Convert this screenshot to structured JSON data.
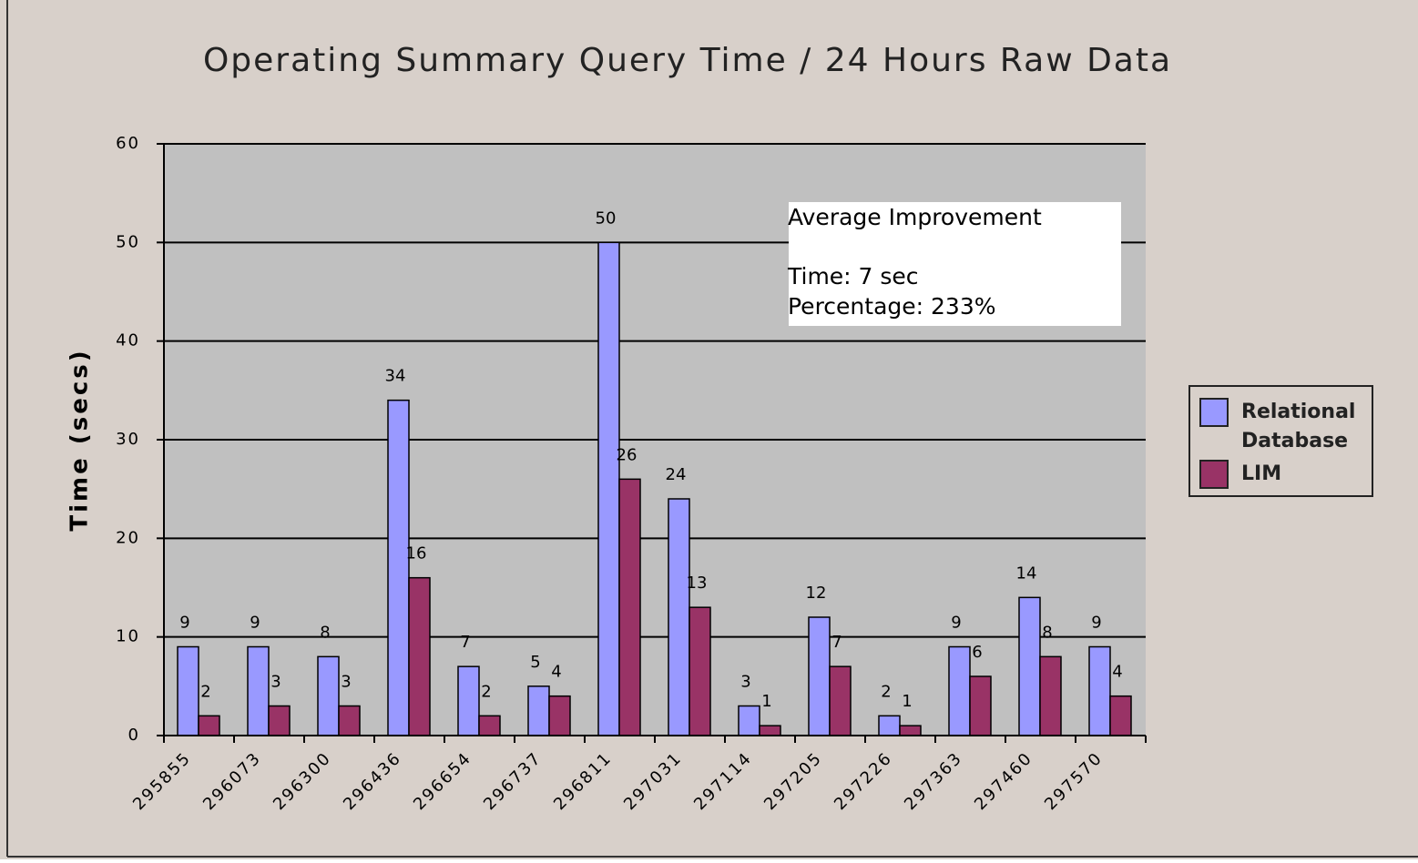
{
  "chart_data": {
    "type": "bar",
    "title": "Operating Summary Query Time / 24 Hours Raw Data",
    "y_label": "Time (secs)",
    "annotation": [
      "Average Improvement",
      "Time: 7 sec",
      "Percentage: 233%"
    ],
    "categories": [
      "295855",
      "296073",
      "296300",
      "296436",
      "296654",
      "296737",
      "296811",
      "297031",
      "297114",
      "297205",
      "297226",
      "297363",
      "297460",
      "297570"
    ],
    "series": [
      {
        "name": "Relational Database",
        "color": "#9999ff",
        "values": [
          9,
          9,
          8,
          34,
          7,
          5,
          50,
          24,
          3,
          12,
          2,
          9,
          14,
          9
        ]
      },
      {
        "name": "LIM",
        "color": "#993366",
        "values": [
          2,
          3,
          3,
          16,
          2,
          4,
          26,
          13,
          1,
          7,
          1,
          6,
          8,
          4
        ]
      }
    ],
    "ylim": [
      0,
      60
    ],
    "yticks": [
      0,
      10,
      20,
      30,
      40,
      50,
      60
    ],
    "grid": true
  }
}
